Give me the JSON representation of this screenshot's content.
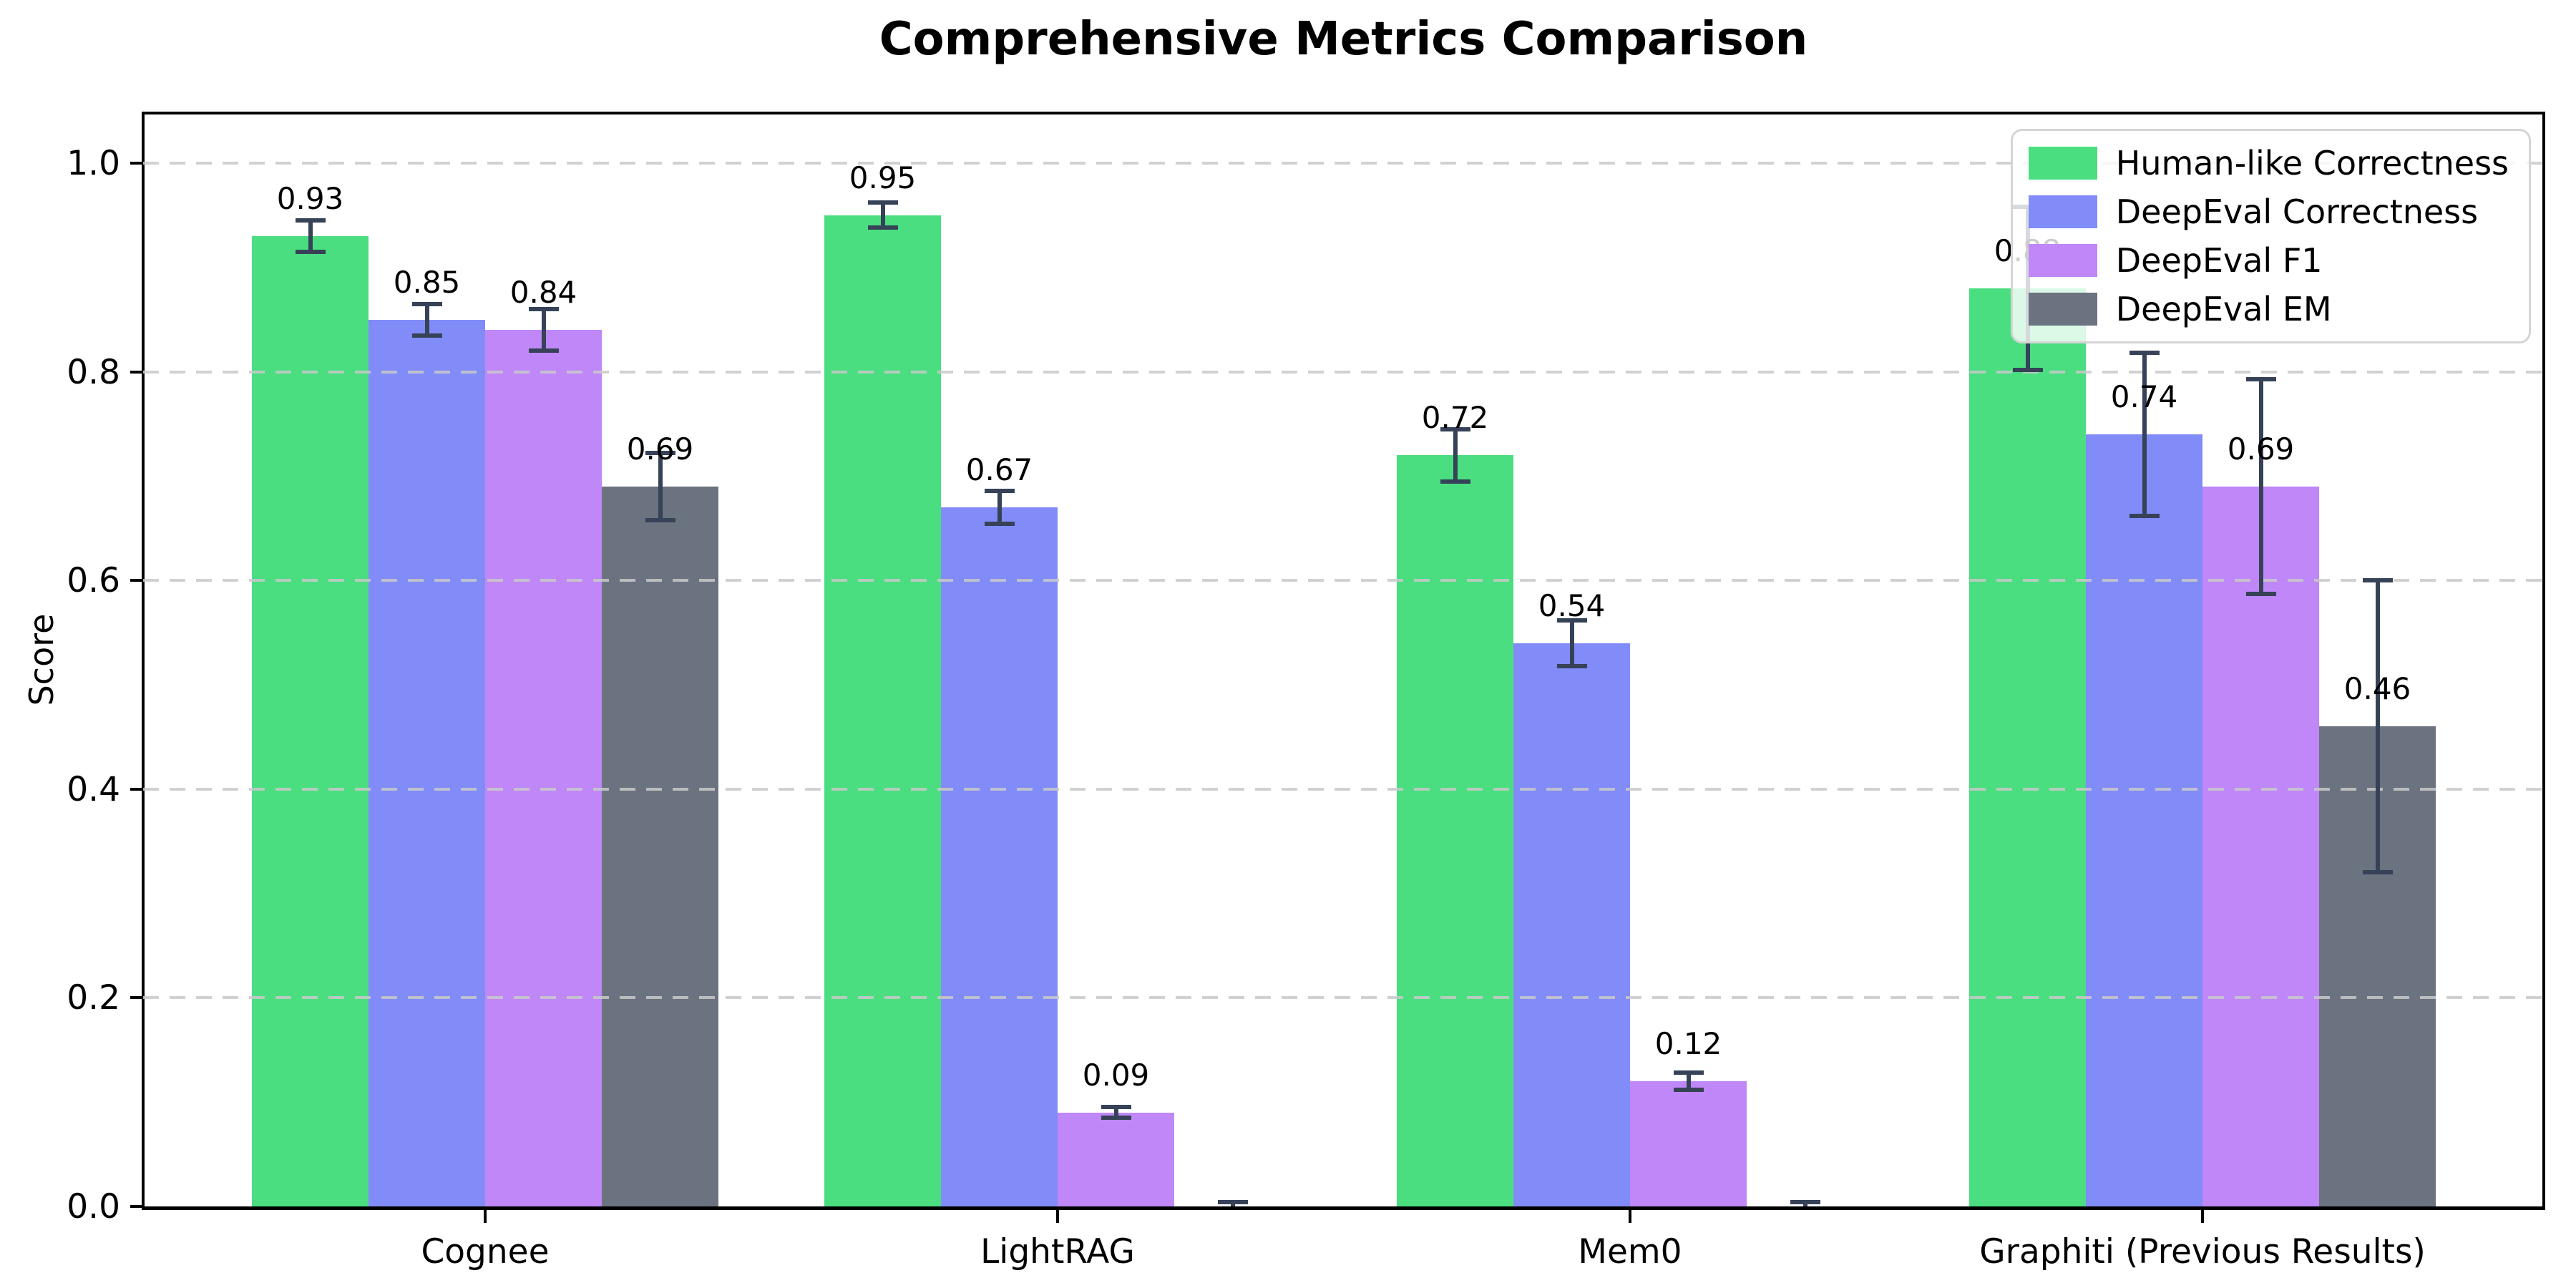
{
  "title": "Comprehensive Metrics Comparison",
  "chart_data": {
    "type": "bar",
    "title": "Comprehensive Metrics Comparison",
    "xlabel": "",
    "ylabel": "Score",
    "categories": [
      "Cognee",
      "LightRAG",
      "Mem0",
      "Graphiti (Previous Results)"
    ],
    "series": [
      {
        "name": "Human-like Correctness",
        "color": "#4ade80",
        "values": [
          0.93,
          0.95,
          0.72,
          0.88
        ],
        "errors": [
          0.015,
          0.012,
          0.025,
          0.078
        ],
        "labels": [
          "0.93",
          "0.95",
          "0.72",
          "0.88"
        ]
      },
      {
        "name": "DeepEval Correctness",
        "color": "#818cf8",
        "values": [
          0.85,
          0.67,
          0.54,
          0.74
        ],
        "errors": [
          0.015,
          0.016,
          0.022,
          0.078
        ],
        "labels": [
          "0.85",
          "0.67",
          "0.54",
          "0.74"
        ]
      },
      {
        "name": "DeepEval F1",
        "color": "#bf87f8",
        "values": [
          0.84,
          0.09,
          0.12,
          0.69
        ],
        "errors": [
          0.02,
          0.005,
          0.008,
          0.103
        ],
        "labels": [
          "0.84",
          "0.09",
          "0.12",
          "0.69"
        ]
      },
      {
        "name": "DeepEval EM",
        "color": "#6b7280",
        "values": [
          0.69,
          0.0,
          0.0,
          0.46
        ],
        "errors": [
          0.032,
          0.004,
          0.004,
          0.14
        ],
        "labels": [
          "0.69",
          null,
          null,
          "0.46"
        ]
      }
    ],
    "yticks": [
      0.0,
      0.2,
      0.4,
      0.6,
      0.8,
      1.0
    ],
    "ytick_labels": [
      "0.0",
      "0.2",
      "0.4",
      "0.6",
      "0.8",
      "1.0"
    ],
    "ylim": [
      0,
      1.048
    ],
    "grid": {
      "axis": "y",
      "style": "dashed",
      "color": "#c9c9c9"
    },
    "legend": {
      "position": "upper right",
      "entries": [
        "Human-like Correctness",
        "DeepEval Correctness",
        "DeepEval F1",
        "DeepEval EM"
      ]
    },
    "error_bar_color": "#364257",
    "background": "#ffffff",
    "text_color": "#000000"
  }
}
